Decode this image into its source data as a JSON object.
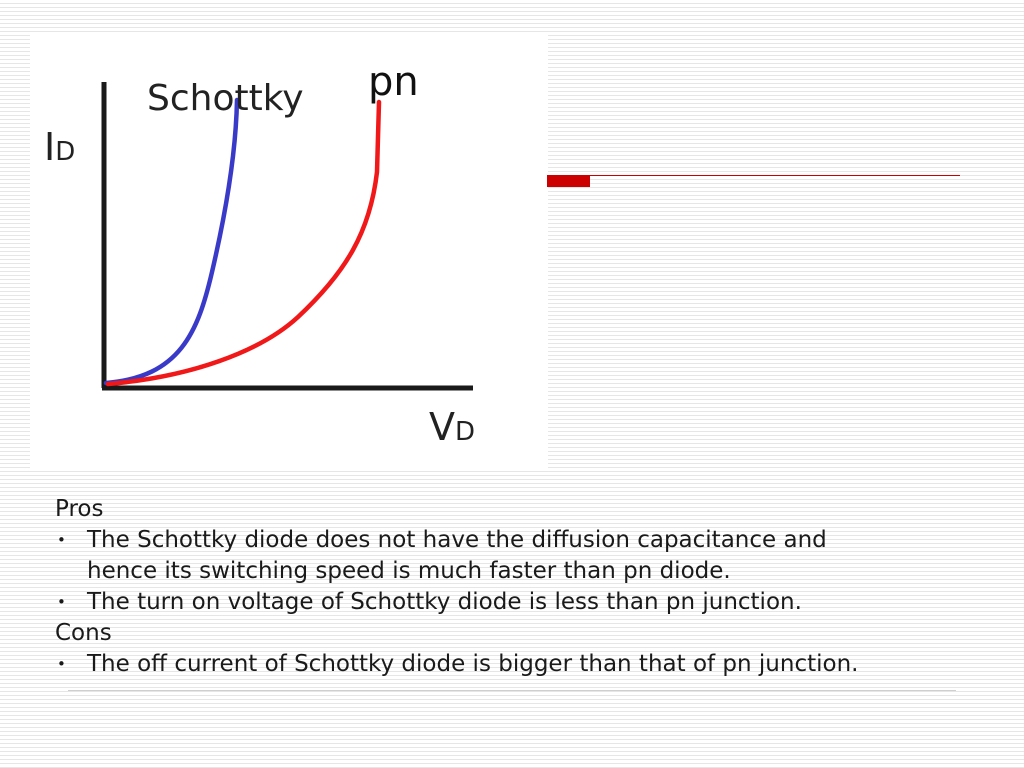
{
  "figure": {
    "schottky_label": "Schottky",
    "pn_label": "pn",
    "y_axis": {
      "main": "I",
      "subscript": "D"
    },
    "x_axis": {
      "main": "V",
      "subscript": "D"
    },
    "curves": [
      {
        "name": "Schottky",
        "color": "#3a3ac8"
      },
      {
        "name": "pn",
        "color": "#f01818"
      }
    ],
    "axis_color": "#1a1a1a"
  },
  "accent": {
    "color": "#cc0000"
  },
  "pros": {
    "heading": "Pros",
    "bullet": "•",
    "items": [
      {
        "lines": [
          "The Schottky diode does not have the diffusion capacitance and",
          "hence its switching speed is much faster than pn diode."
        ]
      },
      {
        "lines": [
          "The turn on voltage of Schottky diode is less than pn junction."
        ]
      }
    ]
  },
  "cons": {
    "heading": "Cons",
    "bullet": "•",
    "items": [
      {
        "lines": [
          "The off current of Schottky diode is bigger than that of pn junction."
        ]
      }
    ]
  }
}
